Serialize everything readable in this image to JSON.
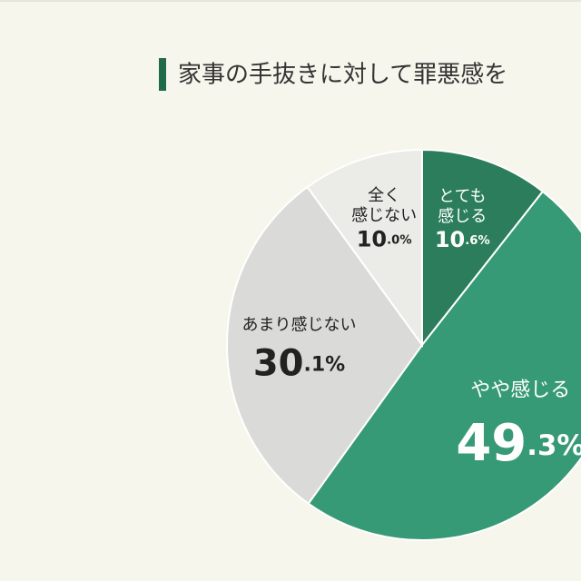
{
  "chart_data": {
    "type": "pie",
    "title": "家事の手抜きに対して罪悪感を",
    "categories": [
      "とても\n感じる",
      "やや感じる",
      "あまり感じない",
      "全く\n感じない"
    ],
    "values": [
      10.6,
      49.3,
      30.1,
      10.0
    ],
    "value_labels": [
      "10.6%",
      "49.3%",
      "30.1%",
      "10.0%"
    ],
    "colors": [
      "#2b7d5c",
      "#379a76",
      "#dadad8",
      "#ebebe7"
    ]
  }
}
